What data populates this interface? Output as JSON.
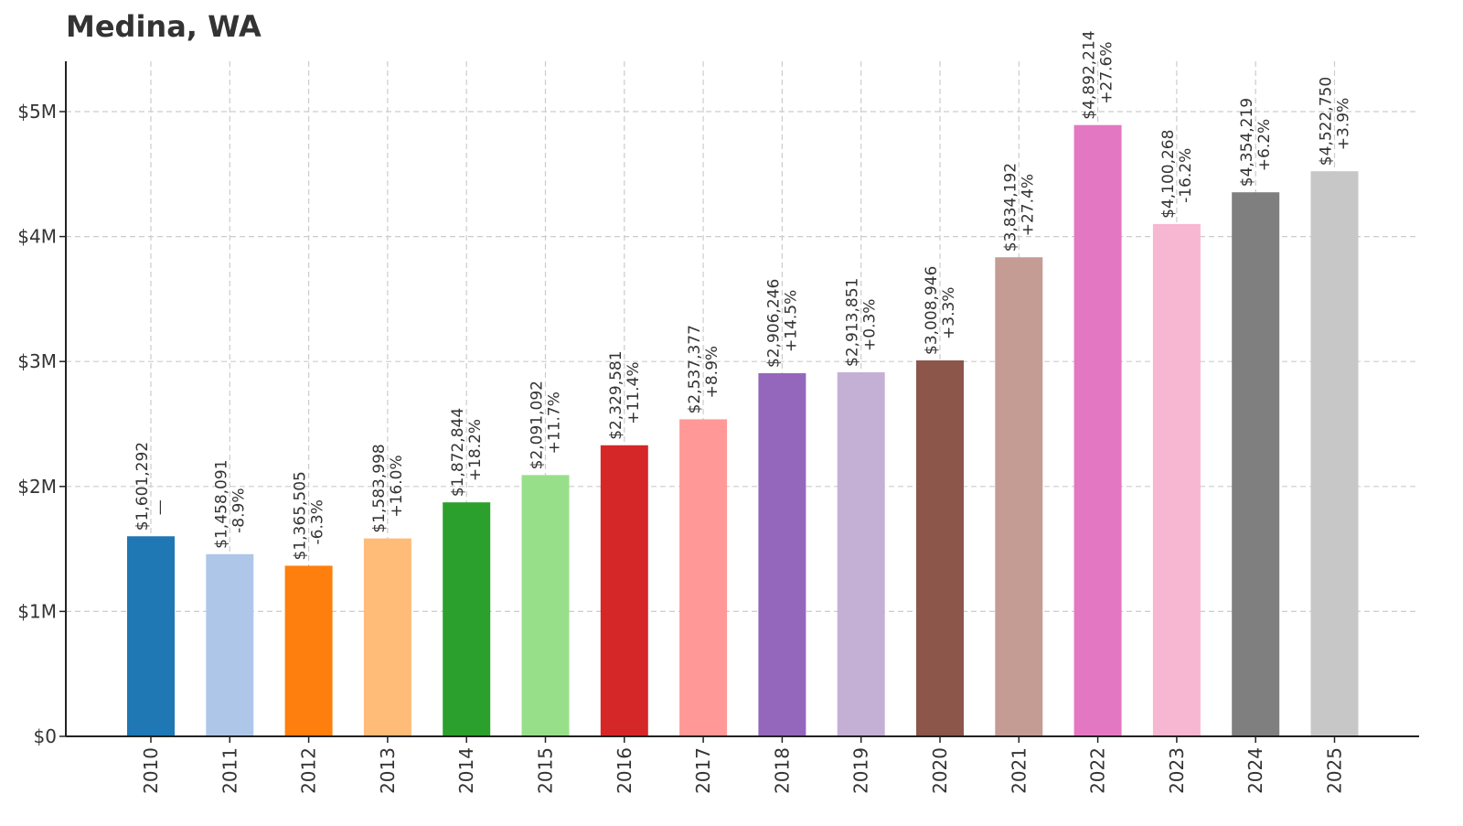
{
  "chart_data": {
    "type": "bar",
    "title": "Medina, WA",
    "xlabel": "",
    "ylabel": "",
    "categories": [
      "2010",
      "2011",
      "2012",
      "2013",
      "2014",
      "2015",
      "2016",
      "2017",
      "2018",
      "2019",
      "2020",
      "2021",
      "2022",
      "2023",
      "2024",
      "2025"
    ],
    "values": [
      1601292,
      1458091,
      1365505,
      1583998,
      1872844,
      2091092,
      2329581,
      2537377,
      2906246,
      2913851,
      3008946,
      3834192,
      4892214,
      4100268,
      4354219,
      4522750
    ],
    "value_labels": [
      "$1,601,292",
      "$1,458,091",
      "$1,365,505",
      "$1,583,998",
      "$1,872,844",
      "$2,091,092",
      "$2,329,581",
      "$2,537,377",
      "$2,906,246",
      "$2,913,851",
      "$3,008,946",
      "$3,834,192",
      "$4,892,214",
      "$4,100,268",
      "$4,354,219",
      "$4,522,750"
    ],
    "change_labels": [
      "—",
      "-8.9%",
      "-6.3%",
      "+16.0%",
      "+18.2%",
      "+11.7%",
      "+11.4%",
      "+8.9%",
      "+14.5%",
      "+0.3%",
      "+3.3%",
      "+27.4%",
      "+27.6%",
      "-16.2%",
      "+6.2%",
      "+3.9%"
    ],
    "colors": [
      "#1f77b4",
      "#aec7e8",
      "#ff7f0e",
      "#ffbb78",
      "#2ca02c",
      "#98df8a",
      "#d62728",
      "#ff9896",
      "#9467bd",
      "#c5b0d5",
      "#8c564b",
      "#c49c94",
      "#e377c2",
      "#f7b6d2",
      "#7f7f7f",
      "#c7c7c7"
    ],
    "yticks": [
      0,
      1000000,
      2000000,
      3000000,
      4000000,
      5000000
    ],
    "ytick_labels": [
      "$0",
      "$1M",
      "$2M",
      "$3M",
      "$4M",
      "$5M"
    ],
    "ylim": [
      0,
      5400000
    ],
    "grid": true,
    "legend": "none"
  }
}
